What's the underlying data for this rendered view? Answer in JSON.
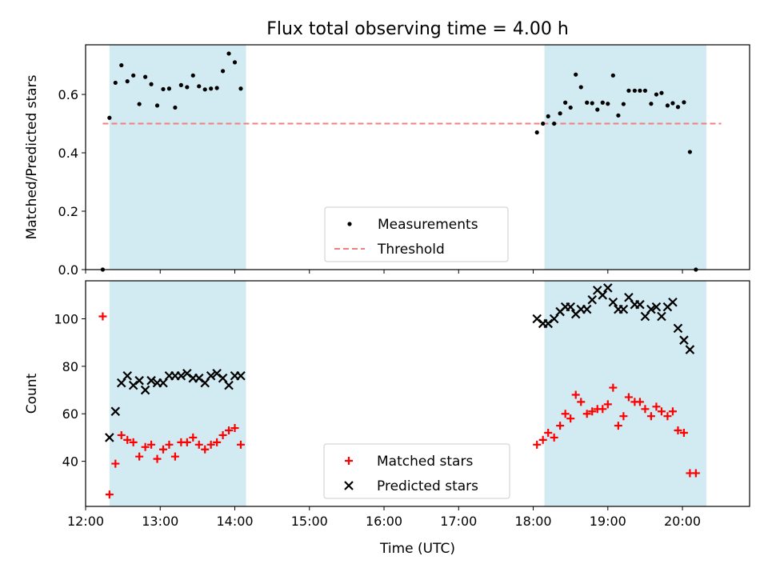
{
  "figure": {
    "title": "Flux total observing time = 4.00 h",
    "xlabel": "Time (UTC)"
  },
  "colors": {
    "shade": "#add8e6",
    "threshold": "#f08080",
    "measurements": "#000000",
    "matched": "#ff0000",
    "predicted": "#000000"
  },
  "chart_data": [
    {
      "type": "scatter",
      "panel": "top",
      "ylabel": "Matched/Predicted stars",
      "xlim": [
        12.0,
        20.9
      ],
      "ylim": [
        0,
        0.77
      ],
      "yticks": [
        0.0,
        0.2,
        0.4,
        0.6
      ],
      "ytick_labels": [
        "0.0",
        "0.2",
        "0.4",
        "0.6"
      ],
      "shaded_intervals": [
        [
          12.32,
          14.15
        ],
        [
          18.15,
          20.32
        ]
      ],
      "threshold": {
        "name": "Threshold",
        "value": 0.5,
        "x": [
          12.23,
          20.52
        ],
        "style": "dashed"
      },
      "legend": {
        "position": "lower-center",
        "entries": [
          "Measurements",
          "Threshold"
        ]
      },
      "series": [
        {
          "name": "Measurements",
          "marker": "dot",
          "points": [
            [
              12.23,
              0.0
            ],
            [
              12.32,
              0.52
            ],
            [
              12.4,
              0.64
            ],
            [
              12.48,
              0.7
            ],
            [
              12.56,
              0.645
            ],
            [
              12.64,
              0.665
            ],
            [
              12.72,
              0.567
            ],
            [
              12.8,
              0.66
            ],
            [
              12.88,
              0.635
            ],
            [
              12.96,
              0.562
            ],
            [
              13.04,
              0.618
            ],
            [
              13.12,
              0.62
            ],
            [
              13.2,
              0.555
            ],
            [
              13.28,
              0.632
            ],
            [
              13.36,
              0.625
            ],
            [
              13.44,
              0.665
            ],
            [
              13.52,
              0.628
            ],
            [
              13.6,
              0.617
            ],
            [
              13.68,
              0.62
            ],
            [
              13.76,
              0.622
            ],
            [
              13.84,
              0.68
            ],
            [
              13.92,
              0.74
            ],
            [
              14.0,
              0.71
            ],
            [
              14.08,
              0.62
            ],
            [
              18.05,
              0.47
            ],
            [
              18.13,
              0.5
            ],
            [
              18.2,
              0.525
            ],
            [
              18.28,
              0.5
            ],
            [
              18.36,
              0.535
            ],
            [
              18.43,
              0.572
            ],
            [
              18.5,
              0.555
            ],
            [
              18.57,
              0.668
            ],
            [
              18.64,
              0.625
            ],
            [
              18.72,
              0.572
            ],
            [
              18.79,
              0.57
            ],
            [
              18.86,
              0.548
            ],
            [
              18.93,
              0.572
            ],
            [
              19.0,
              0.568
            ],
            [
              19.07,
              0.665
            ],
            [
              19.14,
              0.528
            ],
            [
              19.21,
              0.567
            ],
            [
              19.28,
              0.613
            ],
            [
              19.36,
              0.613
            ],
            [
              19.43,
              0.613
            ],
            [
              19.5,
              0.613
            ],
            [
              19.58,
              0.568
            ],
            [
              19.65,
              0.6
            ],
            [
              19.72,
              0.605
            ],
            [
              19.8,
              0.562
            ],
            [
              19.87,
              0.57
            ],
            [
              19.94,
              0.557
            ],
            [
              20.02,
              0.573
            ],
            [
              20.1,
              0.403
            ],
            [
              20.18,
              0.0
            ]
          ]
        }
      ]
    },
    {
      "type": "scatter",
      "panel": "bottom",
      "ylabel": "Count",
      "xlim": [
        12.0,
        20.9
      ],
      "ylim": [
        21,
        116
      ],
      "yticks": [
        40,
        60,
        80,
        100
      ],
      "ytick_labels": [
        "40",
        "60",
        "80",
        "100"
      ],
      "xticks": [
        12.0,
        13.0,
        14.0,
        15.0,
        16.0,
        17.0,
        18.0,
        19.0,
        20.0
      ],
      "xtick_labels": [
        "12:00",
        "13:00",
        "14:00",
        "15:00",
        "16:00",
        "17:00",
        "18:00",
        "19:00",
        "20:00"
      ],
      "shaded_intervals": [
        [
          12.32,
          14.15
        ],
        [
          18.15,
          20.32
        ]
      ],
      "legend": {
        "position": "lower-center",
        "entries": [
          "Matched stars",
          "Predicted stars"
        ]
      },
      "series": [
        {
          "name": "Matched stars",
          "marker": "plus",
          "points": [
            [
              12.23,
              101
            ],
            [
              12.32,
              26
            ],
            [
              12.4,
              39
            ],
            [
              12.48,
              51
            ],
            [
              12.56,
              49
            ],
            [
              12.64,
              48
            ],
            [
              12.72,
              42
            ],
            [
              12.8,
              46
            ],
            [
              12.88,
              47
            ],
            [
              12.96,
              41
            ],
            [
              13.04,
              45
            ],
            [
              13.12,
              47
            ],
            [
              13.2,
              42
            ],
            [
              13.28,
              48
            ],
            [
              13.36,
              48
            ],
            [
              13.44,
              50
            ],
            [
              13.52,
              47
            ],
            [
              13.6,
              45
            ],
            [
              13.68,
              47
            ],
            [
              13.76,
              48
            ],
            [
              13.84,
              51
            ],
            [
              13.92,
              53
            ],
            [
              14.0,
              54
            ],
            [
              14.08,
              47
            ],
            [
              18.05,
              47
            ],
            [
              18.13,
              49
            ],
            [
              18.2,
              52
            ],
            [
              18.28,
              50
            ],
            [
              18.36,
              55
            ],
            [
              18.43,
              60
            ],
            [
              18.5,
              58
            ],
            [
              18.57,
              68
            ],
            [
              18.64,
              65
            ],
            [
              18.72,
              60
            ],
            [
              18.79,
              61
            ],
            [
              18.86,
              62
            ],
            [
              18.93,
              62
            ],
            [
              19.0,
              64
            ],
            [
              19.07,
              71
            ],
            [
              19.14,
              55
            ],
            [
              19.21,
              59
            ],
            [
              19.28,
              67
            ],
            [
              19.36,
              65
            ],
            [
              19.43,
              65
            ],
            [
              19.5,
              62
            ],
            [
              19.58,
              59
            ],
            [
              19.65,
              63
            ],
            [
              19.72,
              61
            ],
            [
              19.8,
              59
            ],
            [
              19.87,
              61
            ],
            [
              19.94,
              53
            ],
            [
              20.02,
              52
            ],
            [
              20.1,
              35
            ],
            [
              20.18,
              35
            ]
          ]
        },
        {
          "name": "Predicted stars",
          "marker": "x",
          "points": [
            [
              12.32,
              50
            ],
            [
              12.4,
              61
            ],
            [
              12.48,
              73
            ],
            [
              12.56,
              76
            ],
            [
              12.64,
              72
            ],
            [
              12.72,
              74
            ],
            [
              12.8,
              70
            ],
            [
              12.88,
              74
            ],
            [
              12.96,
              73
            ],
            [
              13.04,
              73
            ],
            [
              13.12,
              76
            ],
            [
              13.2,
              76
            ],
            [
              13.28,
              76
            ],
            [
              13.36,
              77
            ],
            [
              13.44,
              75
            ],
            [
              13.52,
              75
            ],
            [
              13.6,
              73
            ],
            [
              13.68,
              76
            ],
            [
              13.76,
              77
            ],
            [
              13.84,
              75
            ],
            [
              13.92,
              72
            ],
            [
              14.0,
              76
            ],
            [
              14.08,
              76
            ],
            [
              18.05,
              100
            ],
            [
              18.13,
              98
            ],
            [
              18.2,
              98
            ],
            [
              18.28,
              100
            ],
            [
              18.36,
              103
            ],
            [
              18.43,
              105
            ],
            [
              18.5,
              105
            ],
            [
              18.57,
              102
            ],
            [
              18.64,
              104
            ],
            [
              18.72,
              104
            ],
            [
              18.79,
              108
            ],
            [
              18.86,
              112
            ],
            [
              18.93,
              110
            ],
            [
              19.0,
              113
            ],
            [
              19.07,
              107
            ],
            [
              19.14,
              104
            ],
            [
              19.21,
              104
            ],
            [
              19.28,
              109
            ],
            [
              19.36,
              106
            ],
            [
              19.43,
              106
            ],
            [
              19.5,
              101
            ],
            [
              19.58,
              104
            ],
            [
              19.65,
              105
            ],
            [
              19.72,
              101
            ],
            [
              19.8,
              105
            ],
            [
              19.87,
              107
            ],
            [
              19.94,
              96
            ],
            [
              20.02,
              91
            ],
            [
              20.1,
              87
            ]
          ]
        }
      ]
    }
  ]
}
